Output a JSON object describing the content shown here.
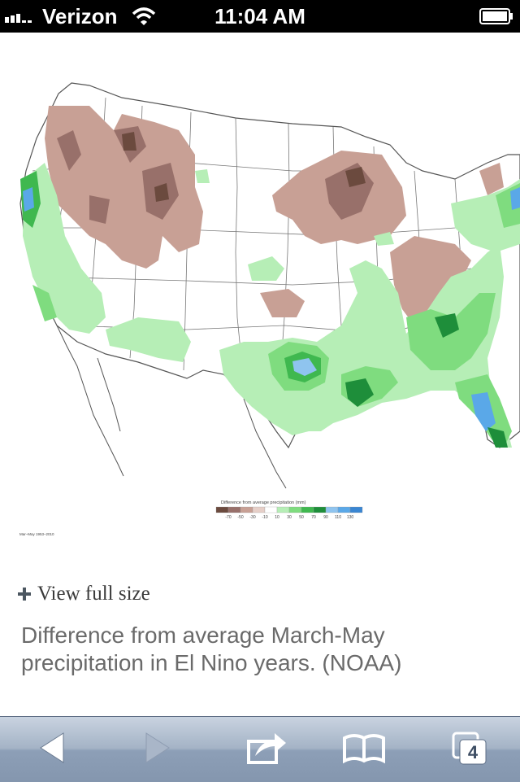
{
  "status_bar": {
    "carrier": "Verizon",
    "time": "11:04 AM"
  },
  "map": {
    "legend_title": "Difference from average precipitation (mm)",
    "legend_ticks": [
      "-70",
      "-50",
      "-30",
      "-10",
      "10",
      "30",
      "50",
      "70",
      "90",
      "110",
      "130"
    ],
    "legend_colors": [
      "#6b4a3e",
      "#98706a",
      "#c8a095",
      "#e6cfc8",
      "#ffffff",
      "#b6eeb6",
      "#7fdc7f",
      "#3fb84f",
      "#1e8e3a",
      "#8fc4ef",
      "#5aa8e8",
      "#3a86d2"
    ],
    "period_note": "Mar–May 1953–2010"
  },
  "view_full_size": "View full size",
  "caption": "Difference from average March-May precipitation in El Nino years. (NOAA)",
  "toolbar": {
    "tabs_count": "4"
  }
}
